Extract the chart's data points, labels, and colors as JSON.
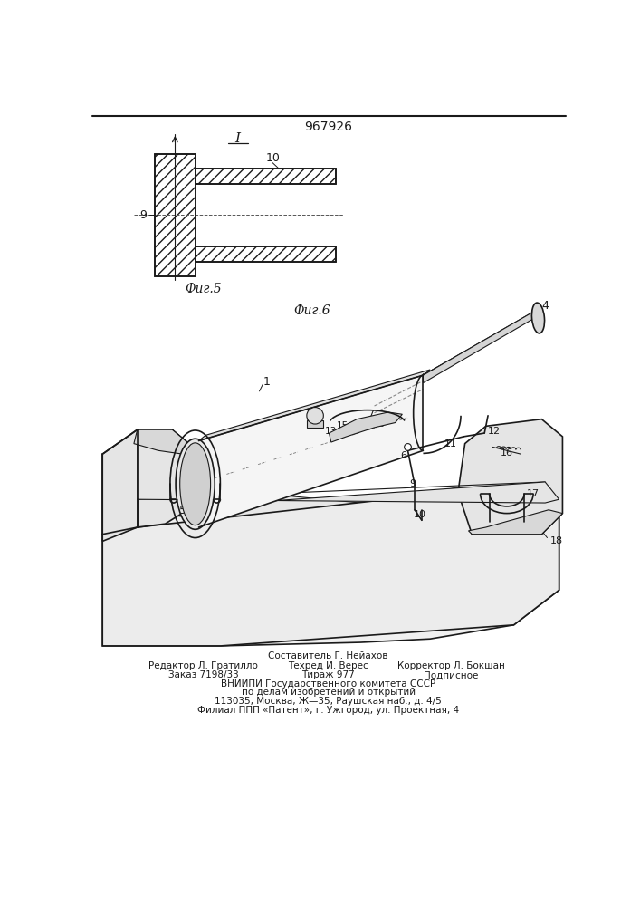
{
  "patent_number": "967926",
  "background_color": "#ffffff",
  "line_color": "#1a1a1a",
  "fig5_label": "Фиг.5",
  "fig6_label": "Фиг.6",
  "section_label": "I",
  "footer_line1": "Составитель Г. Нейахов",
  "footer_line2a": "Редактор Л. Гратилло",
  "footer_line2b": "Техред И. Верес",
  "footer_line2c": "Корректор Л. Бокшан",
  "footer_line3a": "Заказ 7198/33",
  "footer_line3b": "Тираж 977",
  "footer_line3c": "Подписное",
  "footer_line4": "ВНИИПИ Государственного комитета СССР",
  "footer_line5": "по делам изобретений и открытий",
  "footer_line6": "113035, Москва, Ж—35, Раушская наб., д. 4/5",
  "footer_line7": "Филиал ППП «Патент», г. Ужгород, ул. Проектная, 4"
}
